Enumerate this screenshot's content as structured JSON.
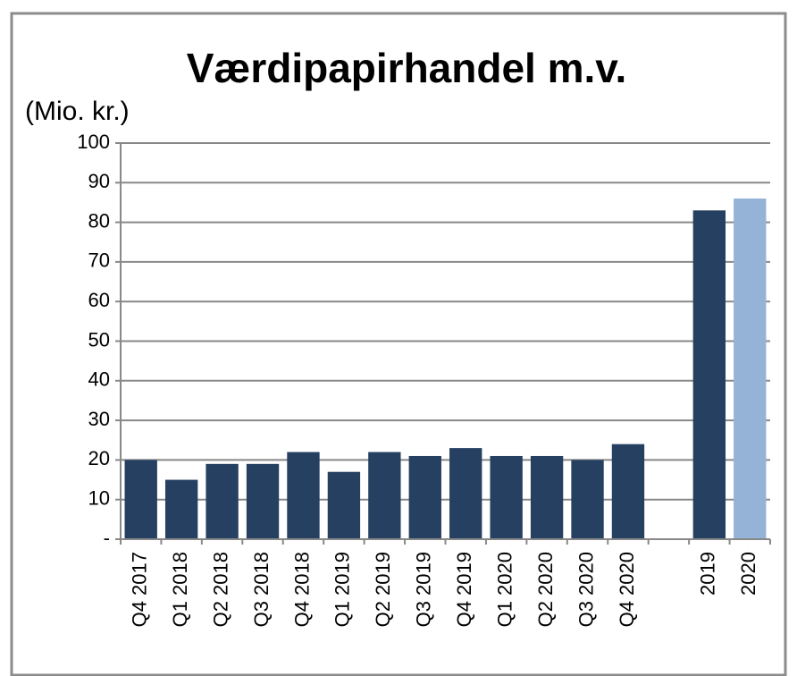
{
  "chart_data": {
    "type": "bar",
    "title": "Værdipapirhandel m.v.",
    "y_label": "(Mio. kr.)",
    "categories": [
      "Q4 2017",
      "Q1 2018",
      "Q2 2018",
      "Q3 2018",
      "Q4 2018",
      "Q1 2019",
      "Q2 2019",
      "Q3 2019",
      "Q4 2019",
      "Q1 2020",
      "Q2 2020",
      "Q3 2020",
      "Q4 2020",
      null,
      "2019",
      "2020"
    ],
    "values": [
      20,
      15,
      19,
      19,
      22,
      17,
      22,
      21,
      23,
      21,
      21,
      20,
      24,
      null,
      83,
      86
    ],
    "colors": [
      "#264061",
      "#264061",
      "#264061",
      "#264061",
      "#264061",
      "#264061",
      "#264061",
      "#264061",
      "#264061",
      "#264061",
      "#264061",
      "#264061",
      "#264061",
      null,
      "#264061",
      "#95b3d7"
    ],
    "ylim": [
      0,
      100
    ],
    "yticks": [
      {
        "value": 0,
        "label": "-"
      },
      10,
      20,
      30,
      40,
      50,
      60,
      70,
      80,
      90,
      100
    ],
    "grid": true
  }
}
